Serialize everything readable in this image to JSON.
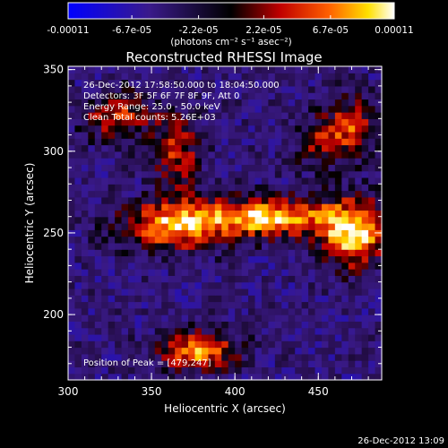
{
  "colorbar": {
    "tick_labels": [
      "-0.00011",
      "-6.7e-05",
      "-2.2e-05",
      "2.2e-05",
      "6.7e-05",
      "0.00011"
    ],
    "tick_values": [
      -0.00011,
      -6.7e-05,
      -2.2e-05,
      2.2e-05,
      6.7e-05,
      0.00011
    ],
    "range": [
      -0.00011,
      0.00011
    ],
    "unit_label": "(photons cm⁻² s⁻¹ asec⁻²)",
    "colors": {
      "min": "#0000ff",
      "mid": "#000000",
      "max": "#ffffff"
    }
  },
  "annotation": {
    "lines": [
      "26-Dec-2012 17:58:50.000 to 18:04:50.000",
      "Detectors: 3F 5F 6F 7F 8F 9F, Att 0",
      "Energy Range: 25.0 - 50.0 keV",
      "Clean     Total counts: 5.26E+03"
    ],
    "peak_label": "Position of Peak = [479,247]"
  },
  "footer": {
    "timestamp": "26-Dec-2012 13:09"
  },
  "chart_data": {
    "type": "heatmap",
    "title": "Reconstructed RHESSI Image",
    "xlabel": "Heliocentric X (arcsec)",
    "ylabel": "Heliocentric Y (arcsec)",
    "xlim": [
      300,
      488
    ],
    "ylim": [
      160,
      352
    ],
    "x_ticks": [
      300,
      350,
      400,
      450
    ],
    "y_ticks": [
      200,
      250,
      300,
      350
    ],
    "x_tick_labels": [
      "300",
      "350",
      "400",
      "450"
    ],
    "y_tick_labels": [
      "200",
      "250",
      "300",
      "350"
    ],
    "grid": false,
    "colormap": "blue-black-red-yellow-white",
    "peak_position": [
      479,
      247
    ],
    "features": [
      {
        "x": 365,
        "y": 255,
        "sx": 22,
        "sy": 10,
        "amp": 0.85
      },
      {
        "x": 420,
        "y": 260,
        "sx": 25,
        "sy": 8,
        "amp": 0.9
      },
      {
        "x": 470,
        "y": 250,
        "sx": 14,
        "sy": 14,
        "amp": 1.0
      },
      {
        "x": 330,
        "y": 322,
        "sx": 14,
        "sy": 10,
        "amp": 0.55
      },
      {
        "x": 365,
        "y": 300,
        "sx": 10,
        "sy": 18,
        "amp": 0.5
      },
      {
        "x": 378,
        "y": 178,
        "sx": 16,
        "sy": 8,
        "amp": 0.8
      },
      {
        "x": 470,
        "y": 315,
        "sx": 10,
        "sy": 12,
        "amp": 0.6
      },
      {
        "x": 450,
        "y": 305,
        "sx": 10,
        "sy": 10,
        "amp": 0.45
      }
    ],
    "min_value": -0.00011,
    "max_value": 0.00011
  }
}
